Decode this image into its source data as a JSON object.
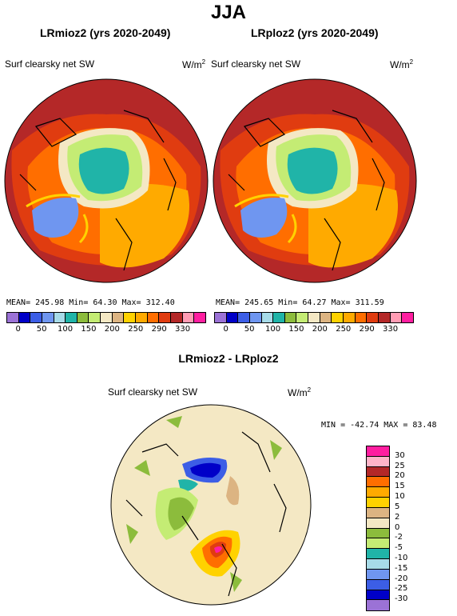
{
  "title": "JJA",
  "panels": [
    {
      "title": "LRmioz2 (yrs 2020-2049)",
      "variable": "Surf clearsky net SW",
      "units": "W/m",
      "units_sup": "2",
      "stats": "MEAN= 245.98  Min=  64.30  Max= 312.40"
    },
    {
      "title": "LRploz2 (yrs 2020-2049)",
      "variable": "Surf clearsky net SW",
      "units": "W/m",
      "units_sup": "2",
      "stats": "MEAN= 245.65  Min=  64.27  Max= 311.59"
    }
  ],
  "top_colorbar": {
    "colors": [
      "#9b72d6",
      "#0000c8",
      "#3c5ee6",
      "#6f96f0",
      "#a7dbe8",
      "#20b4a8",
      "#8cbc3c",
      "#c4ec74",
      "#f4e8c4",
      "#dcb482",
      "#ffd200",
      "#ffaa00",
      "#ff6e00",
      "#e03c10",
      "#b42828",
      "#ff9cb4",
      "#ff1ea0"
    ],
    "ticks": [
      "0",
      "50",
      "100",
      "150",
      "200",
      "250",
      "290",
      "330"
    ]
  },
  "diff_panel": {
    "title": "LRmioz2 - LRploz2",
    "variable": "Surf clearsky net SW",
    "units": "W/m",
    "units_sup": "2",
    "minmax": "MIN = -42.74  MAX =  83.48"
  },
  "diff_colorbar": {
    "colors": [
      "#ff1ea0",
      "#ffb4c8",
      "#b42828",
      "#ff6e00",
      "#ffaa00",
      "#ffd200",
      "#dcb482",
      "#f4e8c4",
      "#8cbc3c",
      "#c4ec74",
      "#20b4a8",
      "#a7dbe8",
      "#6f96f0",
      "#3c5ee6",
      "#0000c8",
      "#9b72d6"
    ],
    "ticks": [
      "30",
      "25",
      "20",
      "15",
      "10",
      "5",
      "2",
      "0",
      "-2",
      "-5",
      "-10",
      "-15",
      "-20",
      "-25",
      "-30"
    ]
  }
}
